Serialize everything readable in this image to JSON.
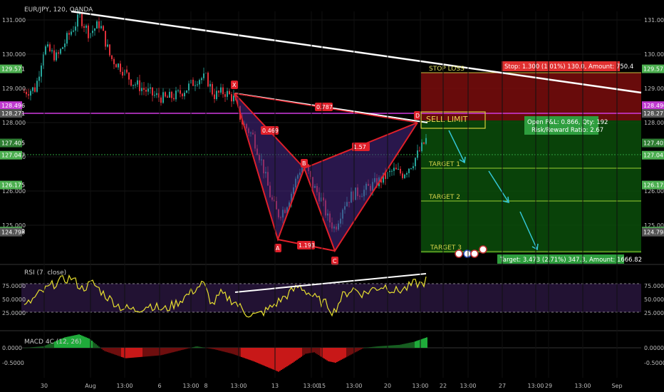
{
  "chart_data": [
    {
      "type": "candlestick",
      "symbol_label": "EUR/JPY, 120, OANDA",
      "y_ticks": [
        "131.000",
        "130.000",
        "129.000",
        "128.000",
        "127.000",
        "126.000",
        "125.000"
      ],
      "ylim": [
        124.6,
        131.5
      ],
      "x_ticks": [
        "30",
        "Aug",
        "13:00",
        "6",
        "13:00",
        "8",
        "13:00",
        "13",
        "13:00",
        "15",
        "13:00",
        "20",
        "13:00",
        "22",
        "13:00",
        "27",
        "13:00",
        "29",
        "13:00",
        "Sep"
      ],
      "price_labels": [
        {
          "text": "129.571",
          "value": 129.571,
          "color": "#4caf50"
        },
        {
          "text": "128.496",
          "value": 128.496,
          "color": "#c03ad0"
        },
        {
          "text": "128.271",
          "value": 128.271,
          "color": "#555555"
        },
        {
          "text": "127.405",
          "value": 127.405,
          "color": "#2e7d32"
        },
        {
          "text": "127.047",
          "value": 127.047,
          "color": "#4caf50"
        },
        {
          "text": "126.175",
          "value": 126.175,
          "color": "#4caf50"
        },
        {
          "text": "124.829",
          "value": 124.829,
          "color": "#4caf50"
        },
        {
          "text": "124.798",
          "value": 124.798,
          "color": "#555555"
        }
      ],
      "bat_pattern": {
        "points": [
          {
            "label": "X",
            "value": 129.05
          },
          {
            "label": "A",
            "value": 125.15
          },
          {
            "label": "B",
            "value": 126.8
          },
          {
            "label": "C",
            "value": 124.9
          },
          {
            "label": "D",
            "value": 128.3
          }
        ],
        "ratios": [
          "0.469",
          "0.787",
          "1.57",
          "1.193"
        ]
      },
      "annotations": {
        "stop_loss": "STOP LOSS",
        "stop_box": "Stop: 1.300 (1.01%) 130.0, Amount: 750.4",
        "sell_limit": "SELL LIMIT",
        "pnl_line1": "Open P&L: 0.866, Qty: 192",
        "pnl_line2": "Risk/Reward Ratio: 2.67",
        "target1": "TARGET 1",
        "target2": "TARGET 2",
        "target3": "TARGET 3",
        "target_box": "Target: 3.473 (2.71%) 347.3, Amount: 1666.82"
      }
    },
    {
      "type": "line",
      "title": "RSI (7, close)",
      "y_ticks": [
        "75.0000",
        "50.0000",
        "25.0000"
      ],
      "ylim": [
        0,
        100
      ],
      "bands": [
        70,
        30
      ]
    },
    {
      "type": "histogram",
      "title": "MACD 4C (12, 26)",
      "y_ticks": [
        "0.0000",
        "-0.5000"
      ]
    }
  ]
}
